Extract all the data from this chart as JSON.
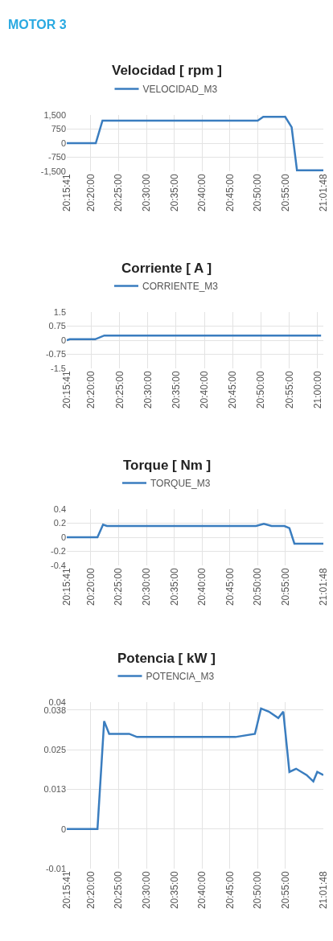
{
  "chart_data": [
    {
      "type": "line",
      "title": "Velocidad [ rpm ]",
      "annotations": [
        "MOTOR 3"
      ],
      "grid": true,
      "legend": "top",
      "x": [
        20.2613,
        20.3483,
        20.3683,
        20.8333,
        20.85,
        20.9158,
        20.935,
        20.951,
        21.03
      ],
      "series": [
        {
          "name": "VELOCIDAD_M3",
          "color": "#3a7dbf",
          "values": [
            0,
            0,
            1200,
            1200,
            1400,
            1400,
            850,
            -1450,
            -1450
          ]
        }
      ],
      "xlim": [
        20.2613,
        21.03
      ],
      "xticks": [
        {
          "value": 20.2613,
          "label": "20:15:41"
        },
        {
          "value": 20.3333,
          "label": "20:20:00"
        },
        {
          "value": 20.4167,
          "label": "20:25:00"
        },
        {
          "value": 20.5,
          "label": "20:30:00"
        },
        {
          "value": 20.5833,
          "label": "20:35:00"
        },
        {
          "value": 20.6667,
          "label": "20:40:00"
        },
        {
          "value": 20.75,
          "label": "20:45:00"
        },
        {
          "value": 20.8333,
          "label": "20:50:00"
        },
        {
          "value": 20.9167,
          "label": "20:55:00"
        },
        {
          "value": 21.03,
          "label": "21:01:48"
        }
      ],
      "ylim": [
        -1500,
        1500
      ],
      "yticks": [
        {
          "value": -1500,
          "label": "-1,500"
        },
        -750,
        0,
        750,
        {
          "value": 1500,
          "label": "1,500"
        }
      ]
    },
    {
      "type": "line",
      "title": "Corriente [ A ]",
      "grid": true,
      "legend": "top",
      "x": [
        20.2613,
        20.27,
        20.345,
        20.3717,
        21.01
      ],
      "series": [
        {
          "name": "CORRIENTE_M3",
          "color": "#3a7dbf",
          "values": [
            0,
            0.05,
            0.05,
            0.25,
            0.25
          ]
        }
      ],
      "xlim": [
        20.2613,
        21.0167
      ],
      "xticks": [
        {
          "value": 20.2613,
          "label": "20:15:41"
        },
        {
          "value": 20.3333,
          "label": "20:20:00"
        },
        {
          "value": 20.4167,
          "label": "20:25:00"
        },
        {
          "value": 20.5,
          "label": "20:30:00"
        },
        {
          "value": 20.5833,
          "label": "20:35:00"
        },
        {
          "value": 20.6667,
          "label": "20:40:00"
        },
        {
          "value": 20.75,
          "label": "20:45:00"
        },
        {
          "value": 20.8333,
          "label": "20:50:00"
        },
        {
          "value": 20.9167,
          "label": "20:55:00"
        },
        {
          "value": 21.0,
          "label": "21:00:00"
        }
      ],
      "ylim": [
        -1.5,
        1.5
      ],
      "yticks": [
        -1.5,
        -0.75,
        0,
        0.75,
        1.5
      ]
    },
    {
      "type": "line",
      "title": "Torque [ Nm ]",
      "grid": true,
      "legend": "top",
      "x": [
        20.2613,
        20.3533,
        20.37,
        20.3817,
        20.8283,
        20.8517,
        20.875,
        20.9133,
        20.9283,
        20.9433,
        21.03
      ],
      "series": [
        {
          "name": "TORQUE_M3",
          "color": "#3a7dbf",
          "values": [
            0,
            0,
            0.18,
            0.16,
            0.16,
            0.19,
            0.16,
            0.16,
            0.13,
            -0.09,
            -0.09
          ]
        }
      ],
      "xlim": [
        20.2613,
        21.03
      ],
      "xticks": [
        {
          "value": 20.2613,
          "label": "20:15:41"
        },
        {
          "value": 20.3333,
          "label": "20:20:00"
        },
        {
          "value": 20.4167,
          "label": "20:25:00"
        },
        {
          "value": 20.5,
          "label": "20:30:00"
        },
        {
          "value": 20.5833,
          "label": "20:35:00"
        },
        {
          "value": 20.6667,
          "label": "20:40:00"
        },
        {
          "value": 20.75,
          "label": "20:45:00"
        },
        {
          "value": 20.8333,
          "label": "20:50:00"
        },
        {
          "value": 20.9167,
          "label": "20:55:00"
        },
        {
          "value": 21.03,
          "label": "21:01:48"
        }
      ],
      "ylim": [
        -0.4,
        0.4
      ],
      "yticks": [
        -0.4,
        -0.2,
        0,
        0.2,
        0.4
      ]
    },
    {
      "type": "line",
      "title": "Potencia [ kW ]",
      "grid": true,
      "legend": "top",
      "x": [
        20.2613,
        20.3533,
        20.3733,
        20.3883,
        20.4483,
        20.4717,
        20.7667,
        20.825,
        20.8433,
        20.8667,
        20.895,
        20.91,
        20.9283,
        20.9483,
        20.98,
        21.0,
        21.0117,
        21.03
      ],
      "series": [
        {
          "name": "POTENCIA_M3",
          "color": "#3a7dbf",
          "values": [
            0,
            0,
            0.034,
            0.03,
            0.03,
            0.029,
            0.029,
            0.03,
            0.038,
            0.037,
            0.035,
            0.037,
            0.018,
            0.019,
            0.017,
            0.015,
            0.018,
            0.017
          ]
        }
      ],
      "xlim": [
        20.2613,
        21.03
      ],
      "xticks": [
        {
          "value": 20.2613,
          "label": "20:15:41"
        },
        {
          "value": 20.3333,
          "label": "20:20:00"
        },
        {
          "value": 20.4167,
          "label": "20:25:00"
        },
        {
          "value": 20.5,
          "label": "20:30:00"
        },
        {
          "value": 20.5833,
          "label": "20:35:00"
        },
        {
          "value": 20.6667,
          "label": "20:40:00"
        },
        {
          "value": 20.75,
          "label": "20:45:00"
        },
        {
          "value": 20.8333,
          "label": "20:50:00"
        },
        {
          "value": 20.9167,
          "label": "20:55:00"
        },
        {
          "value": 21.03,
          "label": "21:01:48"
        }
      ],
      "ylim": [
        -0.0125,
        0.04
      ],
      "yticks": [
        {
          "value": -0.0125,
          "label": "-0.01"
        },
        0,
        {
          "value": 0.0125,
          "label": "0.013"
        },
        0.025,
        {
          "value": 0.0375,
          "label": "0.038"
        },
        0.04
      ]
    }
  ]
}
